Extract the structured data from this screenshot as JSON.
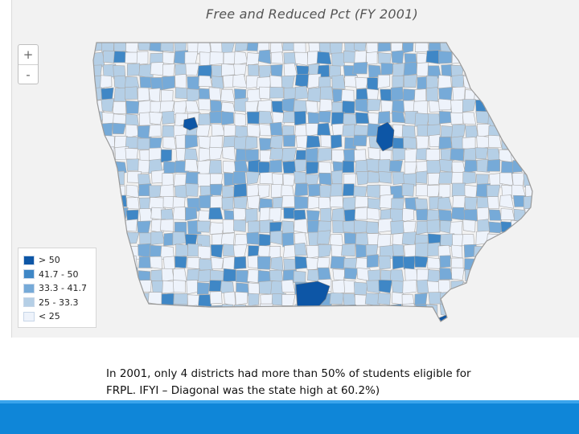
{
  "map": {
    "title": "Free and Reduced Pct (FY 2001)",
    "zoom_in_label": "+",
    "zoom_out_label": "-",
    "legend": [
      {
        "label": "> 50",
        "color": "#0d56a6"
      },
      {
        "label": "41.7 - 50",
        "color": "#3f87c6"
      },
      {
        "label": "33.3 - 41.7",
        "color": "#76aad8"
      },
      {
        "label": "25 - 33.3",
        "color": "#b5cfe6"
      },
      {
        "label": "< 25",
        "color": "#eef3fb"
      }
    ]
  },
  "caption": {
    "line1": "In 2001, only 4 districts had more than 50% of students eligible for",
    "line2": "FRPL.  IFYI – Diagonal was the state high at 60.2%)"
  }
}
